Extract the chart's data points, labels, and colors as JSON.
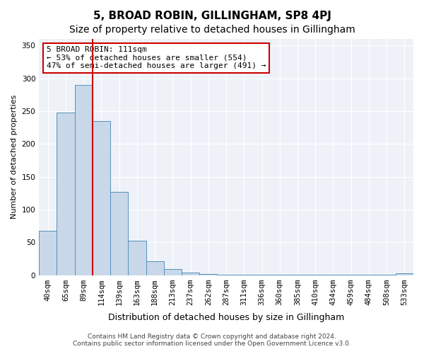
{
  "title": "5, BROAD ROBIN, GILLINGHAM, SP8 4PJ",
  "subtitle": "Size of property relative to detached houses in Gillingham",
  "xlabel": "Distribution of detached houses by size in Gillingham",
  "ylabel": "Number of detached properties",
  "categories": [
    "40sqm",
    "65sqm",
    "89sqm",
    "114sqm",
    "139sqm",
    "163sqm",
    "188sqm",
    "213sqm",
    "237sqm",
    "262sqm",
    "287sqm",
    "311sqm",
    "336sqm",
    "360sqm",
    "385sqm",
    "410sqm",
    "434sqm",
    "459sqm",
    "484sqm",
    "508sqm",
    "533sqm"
  ],
  "values": [
    68,
    248,
    290,
    235,
    127,
    52,
    21,
    9,
    4,
    2,
    1,
    1,
    1,
    1,
    1,
    1,
    1,
    1,
    1,
    1,
    3
  ],
  "bar_color": "#c8d8e8",
  "bar_edge_color": "#5590bb",
  "vline_x": 3,
  "vline_color": "#cc0000",
  "annotation_text": "5 BROAD ROBIN: 111sqm\n← 53% of detached houses are smaller (554)\n47% of semi-detached houses are larger (491) →",
  "annotation_box_color": "#ffffff",
  "annotation_box_edge_color": "#cc0000",
  "ylim": [
    0,
    360
  ],
  "yticks": [
    0,
    50,
    100,
    150,
    200,
    250,
    300,
    350
  ],
  "bg_color": "#eef2f8",
  "plot_bg_color": "#eef2f8",
  "footer_line1": "Contains HM Land Registry data © Crown copyright and database right 2024.",
  "footer_line2": "Contains public sector information licensed under the Open Government Licence v3.0.",
  "title_fontsize": 11,
  "subtitle_fontsize": 10,
  "xlabel_fontsize": 9,
  "ylabel_fontsize": 8,
  "tick_fontsize": 7.5,
  "annotation_fontsize": 8,
  "footer_fontsize": 6.5
}
